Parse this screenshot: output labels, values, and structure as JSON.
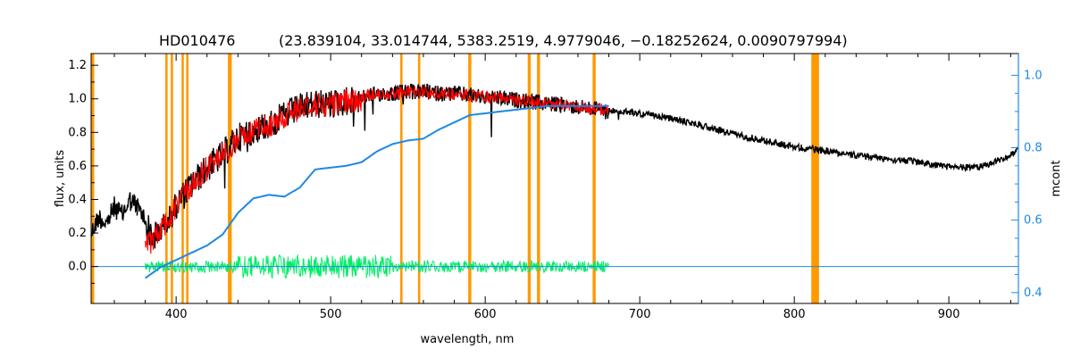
{
  "chart_data": {
    "type": "line",
    "title": "HD010476",
    "title_params": "(23.839104, 33.014744, 5383.2519, 4.9779046, −0.18252624, 0.0090797994)",
    "xlabel": "wavelength, nm",
    "ylabel": "flux, units",
    "y2label": "mcont",
    "xlim": [
      345,
      945
    ],
    "ylim": [
      -0.22,
      1.27
    ],
    "y2lim": [
      0.37,
      1.06
    ],
    "xticks": [
      400,
      500,
      600,
      700,
      800,
      900
    ],
    "yticks": [
      0.0,
      0.2,
      0.4,
      0.6,
      0.8,
      1.0,
      1.2
    ],
    "yticks_labels": [
      "0.0",
      "0.2",
      "0.4",
      "0.6",
      "0.8",
      "1.0",
      "1.2"
    ],
    "y2ticks": [
      0.4,
      0.6,
      0.8,
      1.0
    ],
    "y2ticks_labels": [
      "0.4",
      "0.6",
      "0.8",
      "1.0"
    ],
    "grid": false,
    "colors": {
      "observed": "#000000",
      "model": "#ff0000",
      "residual": "#00ee66",
      "mcont": "#1e88e5",
      "masked_band": "#ff9900",
      "right_axis": "#1e88e5"
    },
    "masked_bands": [
      [
        345,
        347
      ],
      [
        393,
        394.5
      ],
      [
        396.5,
        398
      ],
      [
        403.5,
        405
      ],
      [
        406.5,
        408
      ],
      [
        433.5,
        436
      ],
      [
        545,
        546.5
      ],
      [
        556.5,
        558
      ],
      [
        589,
        591
      ],
      [
        627.5,
        629.5
      ],
      [
        633.5,
        635.5
      ],
      [
        669.5,
        671.5
      ],
      [
        811,
        816
      ]
    ],
    "series": [
      {
        "key": "observed",
        "x": [
          345,
          350,
          355,
          360,
          365,
          370,
          375,
          380,
          385,
          390,
          395,
          400,
          410,
          420,
          430,
          440,
          450,
          460,
          470,
          480,
          490,
          500,
          510,
          520,
          530,
          540,
          550,
          560,
          570,
          580,
          590,
          600,
          610,
          620,
          630,
          640,
          650,
          660,
          670,
          680,
          690,
          700,
          720,
          740,
          760,
          780,
          800,
          820,
          840,
          860,
          880,
          900,
          920,
          935,
          945
        ],
        "y": [
          0.22,
          0.32,
          0.28,
          0.38,
          0.33,
          0.42,
          0.38,
          0.3,
          0.2,
          0.25,
          0.3,
          0.4,
          0.52,
          0.62,
          0.7,
          0.8,
          0.85,
          0.88,
          0.93,
          0.98,
          1.0,
          1.0,
          1.02,
          1.03,
          1.05,
          1.05,
          1.06,
          1.06,
          1.05,
          1.05,
          1.04,
          1.03,
          1.02,
          1.01,
          1.0,
          0.99,
          0.98,
          0.97,
          0.96,
          0.94,
          0.93,
          0.92,
          0.89,
          0.85,
          0.8,
          0.76,
          0.72,
          0.7,
          0.67,
          0.65,
          0.63,
          0.6,
          0.6,
          0.65,
          0.7
        ]
      },
      {
        "key": "model",
        "x": [
          380,
          385,
          390,
          395,
          400,
          410,
          420,
          430,
          440,
          450,
          460,
          470,
          480,
          490,
          500,
          510,
          520,
          530,
          540,
          550,
          560,
          570,
          580,
          590,
          600,
          610,
          620,
          630,
          640,
          650,
          660,
          670,
          680
        ],
        "y": [
          0.14,
          0.2,
          0.26,
          0.3,
          0.4,
          0.52,
          0.62,
          0.7,
          0.8,
          0.85,
          0.88,
          0.93,
          0.98,
          1.0,
          1.0,
          1.02,
          1.03,
          1.05,
          1.05,
          1.06,
          1.06,
          1.05,
          1.05,
          1.04,
          1.03,
          1.02,
          1.01,
          1.0,
          0.99,
          0.98,
          0.97,
          0.96,
          0.95
        ]
      },
      {
        "key": "residual",
        "x": [
          380,
          400,
          420,
          440,
          460,
          480,
          500,
          520,
          540,
          560,
          580,
          600,
          620,
          640,
          660,
          680
        ],
        "y": [
          0.0,
          0.0,
          0.0,
          0.0,
          0.0,
          0.0,
          0.0,
          0.0,
          0.0,
          0.0,
          0.0,
          0.0,
          0.0,
          0.0,
          0.0,
          0.0
        ]
      },
      {
        "key": "mcont",
        "axis": "right",
        "x": [
          380,
          385,
          390,
          400,
          410,
          420,
          430,
          440,
          450,
          460,
          470,
          480,
          490,
          500,
          510,
          520,
          530,
          540,
          550,
          560,
          570,
          580,
          590,
          600,
          610,
          620,
          630,
          640,
          650,
          660,
          670,
          680
        ],
        "y": [
          0.44,
          0.455,
          0.47,
          0.49,
          0.51,
          0.53,
          0.56,
          0.62,
          0.66,
          0.67,
          0.665,
          0.69,
          0.74,
          0.745,
          0.75,
          0.76,
          0.79,
          0.81,
          0.82,
          0.825,
          0.85,
          0.87,
          0.89,
          0.895,
          0.9,
          0.905,
          0.91,
          0.915,
          0.915,
          0.915,
          0.915,
          0.915
        ]
      }
    ]
  }
}
